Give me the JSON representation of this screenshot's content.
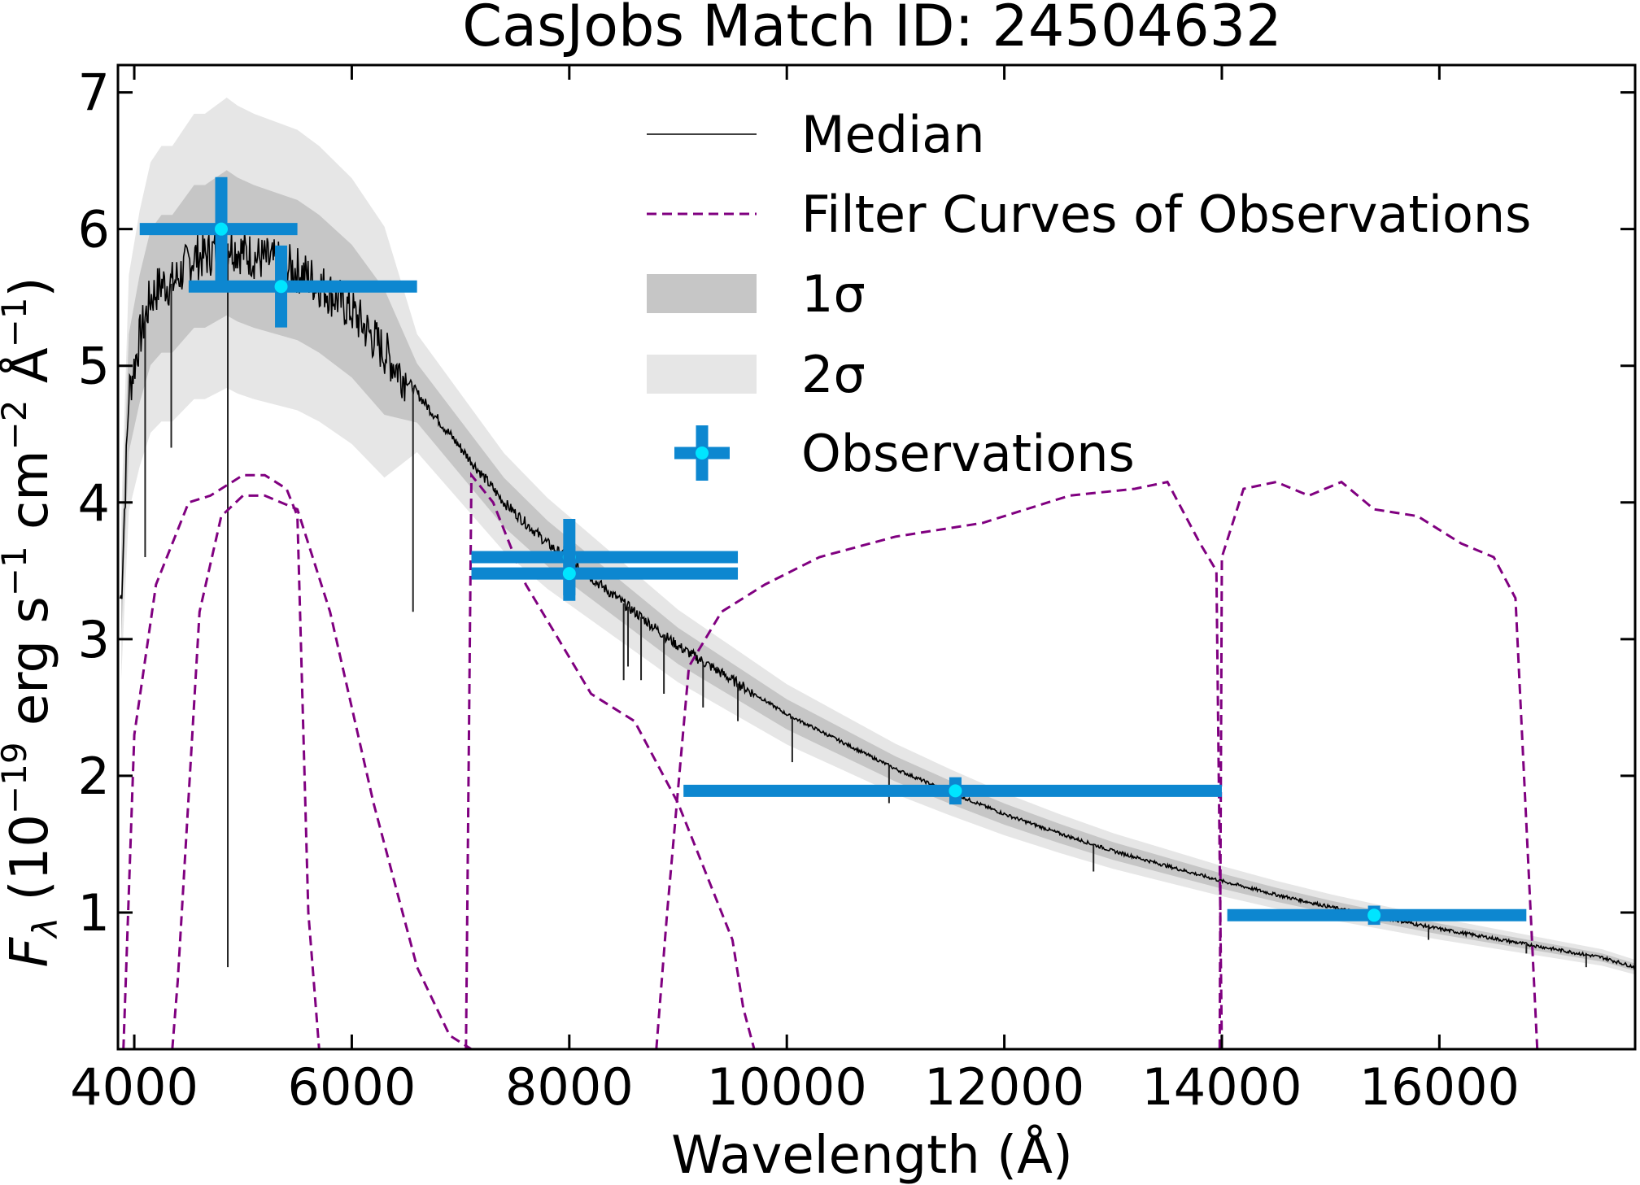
{
  "chart_data": {
    "type": "line",
    "title": "CasJobs Match ID: 24504632",
    "xlabel": "Wavelength (Å)",
    "ylabel": "F_λ (10^−19 erg s^−1 cm^−2 Å^−1)",
    "ylabel_parts": {
      "f": "F",
      "lambda": "λ",
      "open": " (10",
      "exp19": "−19",
      "erg": " erg s",
      "exp1a": "−1",
      "cm": " cm",
      "exp2": "−2",
      "ang": " Å",
      "exp1b": "−1",
      "close": ")"
    },
    "xlim": [
      3850,
      17800
    ],
    "ylim": [
      0.0,
      7.2
    ],
    "xticks": [
      4000,
      6000,
      8000,
      10000,
      12000,
      14000,
      16000
    ],
    "yticks": [
      1,
      2,
      3,
      4,
      5,
      6,
      7
    ],
    "grid": false,
    "legend_position": "upper-right",
    "legend": [
      {
        "label": "Median",
        "style": "line",
        "color": "#000000"
      },
      {
        "label": "Filter Curves of Observations",
        "style": "dashed",
        "color": "#800080"
      },
      {
        "label": "1σ",
        "style": "band",
        "color": "#c6c6c6"
      },
      {
        "label": "2σ",
        "style": "band",
        "color": "#e6e6e6"
      },
      {
        "label": "Observations",
        "style": "errorbar",
        "color": "#0d87d0"
      }
    ],
    "median": {
      "x": [
        3880,
        3950,
        4050,
        4150,
        4250,
        4350,
        4450,
        4550,
        4650,
        4750,
        4850,
        4950,
        5100,
        5300,
        5500,
        5700,
        6000,
        6300,
        6600,
        7000,
        7400,
        7800,
        8200,
        8600,
        9000,
        9500,
        10000,
        10500,
        11000,
        11500,
        12000,
        12500,
        13000,
        13500,
        14000,
        14500,
        15000,
        15500,
        16000,
        16500,
        17000,
        17500,
        17800
      ],
      "y": [
        3.3,
        4.8,
        5.2,
        5.5,
        5.6,
        5.6,
        5.7,
        5.8,
        5.8,
        5.85,
        5.9,
        5.85,
        5.8,
        5.75,
        5.7,
        5.6,
        5.4,
        5.1,
        4.8,
        4.4,
        4.0,
        3.7,
        3.45,
        3.2,
        2.95,
        2.7,
        2.45,
        2.25,
        2.05,
        1.88,
        1.72,
        1.58,
        1.45,
        1.34,
        1.23,
        1.13,
        1.04,
        0.96,
        0.88,
        0.81,
        0.74,
        0.67,
        0.6
      ]
    },
    "filters": [
      {
        "x": [
          3900,
          4000,
          4200,
          4500,
          4700,
          4900,
          5000,
          5200,
          5400,
          5500,
          5600,
          5700
        ],
        "y": [
          0.0,
          2.3,
          3.4,
          4.0,
          4.05,
          4.15,
          4.2,
          4.2,
          4.1,
          3.9,
          1.0,
          0.0
        ]
      },
      {
        "x": [
          4350,
          4400,
          4600,
          4800,
          5000,
          5200,
          5500,
          5800,
          6200,
          6600,
          6900,
          7100
        ],
        "y": [
          0.0,
          0.5,
          3.2,
          3.9,
          4.05,
          4.05,
          3.95,
          3.2,
          1.8,
          0.6,
          0.1,
          0.0
        ]
      },
      {
        "x": [
          7050,
          7100,
          7300,
          7600,
          7900,
          8200,
          8600,
          9000,
          9300,
          9500,
          9600,
          9700
        ],
        "y": [
          0.0,
          4.2,
          4.0,
          3.4,
          3.0,
          2.6,
          2.4,
          1.8,
          1.2,
          0.8,
          0.3,
          0.0
        ]
      },
      {
        "x": [
          8800,
          8900,
          9100,
          9400,
          9800,
          10300,
          11000,
          11800,
          12600,
          13200,
          13500,
          13800,
          13950,
          14000
        ],
        "y": [
          0.0,
          1.0,
          2.8,
          3.2,
          3.4,
          3.6,
          3.75,
          3.85,
          4.05,
          4.1,
          4.15,
          3.7,
          3.5,
          0.0
        ]
      },
      {
        "x": [
          13980,
          14000,
          14200,
          14500,
          14800,
          15100,
          15400,
          15800,
          16200,
          16500,
          16700,
          16900,
          17000
        ],
        "y": [
          0.0,
          3.6,
          4.1,
          4.15,
          4.05,
          4.15,
          3.95,
          3.9,
          3.7,
          3.6,
          3.3,
          0.0,
          0.0
        ]
      }
    ],
    "observations": [
      {
        "x": 4800,
        "y": 6.0,
        "xerr": [
          4050,
          5500
        ],
        "yerr": 0.38
      },
      {
        "x": 5350,
        "y": 5.58,
        "xerr": [
          4500,
          6600
        ],
        "yerr": 0.3
      },
      {
        "x": 8000,
        "y": 3.6,
        "xerr": [
          7100,
          9550
        ],
        "yerr": 0.28
      },
      {
        "x": 8000,
        "y": 3.48,
        "xerr": [
          7100,
          9550
        ],
        "yerr": 0.2
      },
      {
        "x": 11550,
        "y": 1.89,
        "xerr": [
          9050,
          14000
        ],
        "yerr": 0.1
      },
      {
        "x": 15400,
        "y": 0.98,
        "xerr": [
          14050,
          16800
        ],
        "yerr": 0.07
      }
    ]
  }
}
